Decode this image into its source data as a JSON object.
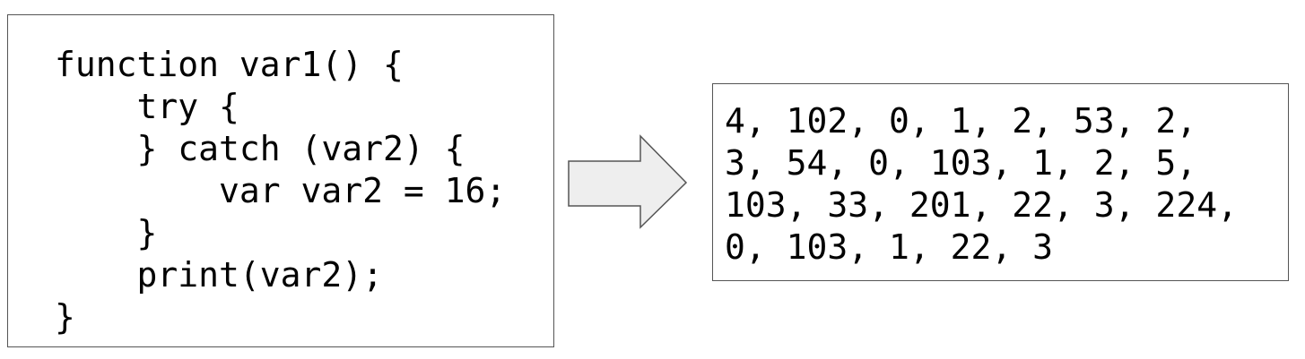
{
  "source_code": {
    "lines": [
      "function var1() {",
      "    try {",
      "    } catch (var2) {",
      "        var var2 = 16;",
      "    }",
      "    print(var2);",
      "}"
    ]
  },
  "arrow": {
    "fill_color": "#eeeeee",
    "stroke_color": "#555555"
  },
  "output": {
    "lines": [
      "4, 102, 0, 1, 2, 53, 2,",
      "3, 54, 0, 103, 1, 2, 5,",
      "103, 33, 201, 22, 3, 224,",
      "0, 103, 1, 22, 3"
    ]
  }
}
